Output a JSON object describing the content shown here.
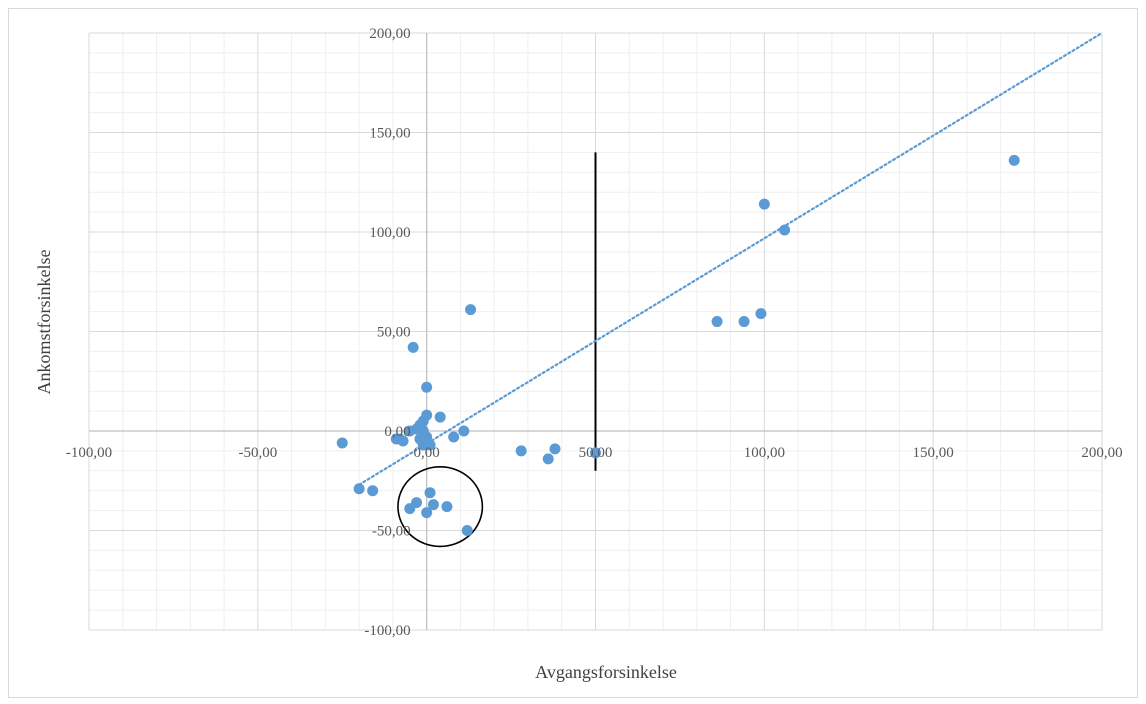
{
  "chart_data": {
    "type": "scatter",
    "title": "",
    "xlabel": "Avgangsforsinkelse",
    "ylabel": "Ankomstforsinkelse",
    "xlim": [
      -100,
      200
    ],
    "ylim": [
      -100,
      200
    ],
    "x_ticks": [
      -100,
      -50,
      0,
      50,
      100,
      150,
      200
    ],
    "y_ticks": [
      -100,
      -50,
      0,
      50,
      100,
      150,
      200
    ],
    "x_tick_labels": [
      "-100,00",
      "-50,00",
      "0,00",
      "50,00",
      "100,00",
      "150,00",
      "200,00"
    ],
    "y_tick_labels": [
      "-100,00",
      "-50,00",
      "0,00",
      "50,00",
      "100,00",
      "150,00",
      "200,00"
    ],
    "grid": true,
    "legend": "none",
    "series": [
      {
        "color": "#5b9bd5",
        "points": [
          [
            174,
            136
          ],
          [
            100,
            114
          ],
          [
            106,
            101
          ],
          [
            99,
            59
          ],
          [
            94,
            55
          ],
          [
            86,
            55
          ],
          [
            13,
            61
          ],
          [
            -4,
            42
          ],
          [
            0,
            22
          ],
          [
            0,
            8
          ],
          [
            4,
            7
          ],
          [
            -1,
            5
          ],
          [
            -2,
            3
          ],
          [
            -3,
            1
          ],
          [
            -5,
            0
          ],
          [
            -1,
            0
          ],
          [
            -7,
            -5
          ],
          [
            -8,
            -4
          ],
          [
            -9,
            -4
          ],
          [
            -2,
            -4
          ],
          [
            0,
            -3
          ],
          [
            -1,
            -7
          ],
          [
            1,
            -7
          ],
          [
            -25,
            -6
          ],
          [
            8,
            -3
          ],
          [
            11,
            0
          ],
          [
            28,
            -10
          ],
          [
            36,
            -14
          ],
          [
            38,
            -9
          ],
          [
            50,
            -11
          ],
          [
            -20,
            -29
          ],
          [
            -16,
            -30
          ],
          [
            1,
            -31
          ],
          [
            -3,
            -36
          ],
          [
            -5,
            -39
          ],
          [
            2,
            -37
          ],
          [
            6,
            -38
          ],
          [
            0,
            -41
          ],
          [
            12,
            -50
          ]
        ]
      }
    ],
    "trendline": {
      "style": "dotted",
      "color": "#5b9bd5",
      "from": [
        -20,
        -27
      ],
      "to": [
        200,
        200
      ]
    },
    "annotations": {
      "vertical_line": {
        "x": 50,
        "y_from": -20,
        "y_to": 140,
        "color": "#000000"
      },
      "circle": {
        "cx": 4,
        "cy": -38,
        "rx": 12.5,
        "ry": 20,
        "color": "#000000"
      }
    }
  }
}
